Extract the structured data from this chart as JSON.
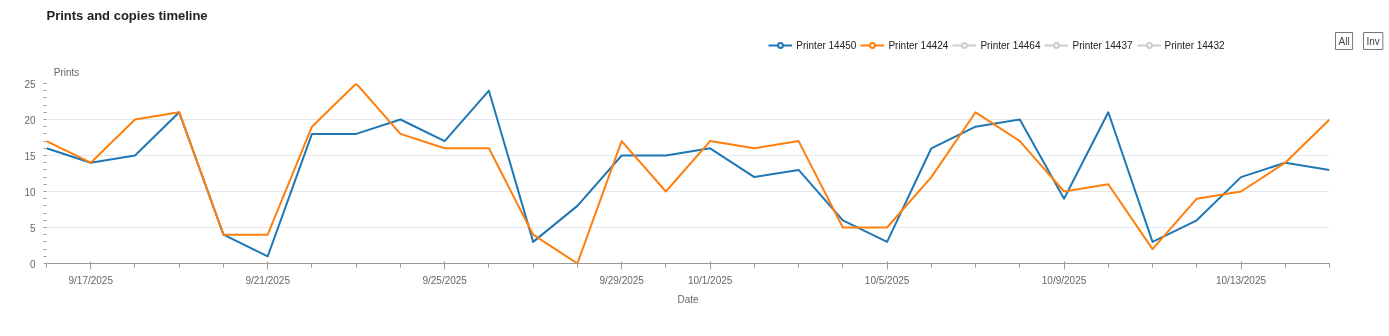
{
  "chart_data": {
    "type": "line",
    "title": "Prints and copies timeline",
    "xlabel": "Date",
    "ylabel": "Prints",
    "x": [
      "2025-09-16",
      "2025-09-17",
      "2025-09-18",
      "2025-09-19",
      "2025-09-20",
      "2025-09-21",
      "2025-09-22",
      "2025-09-23",
      "2025-09-24",
      "2025-09-25",
      "2025-09-26",
      "2025-09-27",
      "2025-09-28",
      "2025-09-29",
      "2025-09-30",
      "2025-10-01",
      "2025-10-02",
      "2025-10-03",
      "2025-10-04",
      "2025-10-05",
      "2025-10-06",
      "2025-10-07",
      "2025-10-08",
      "2025-10-09",
      "2025-10-10",
      "2025-10-11",
      "2025-10-12",
      "2025-10-13",
      "2025-10-14",
      "2025-10-15"
    ],
    "series": [
      {
        "name": "Printer 14450",
        "color": "#1f77b4",
        "values": [
          16,
          14,
          15,
          21,
          4,
          1,
          18,
          18,
          20,
          17,
          24,
          3,
          8,
          15,
          15,
          16,
          12,
          13,
          6,
          3,
          16,
          19,
          20,
          9,
          21,
          3,
          6,
          12,
          14,
          13
        ]
      },
      {
        "name": "Printer 14424",
        "color": "#ff7f0e",
        "values": [
          17,
          14,
          20,
          21,
          4,
          4,
          19,
          25,
          18,
          16,
          16,
          4,
          0,
          17,
          10,
          17,
          16,
          17,
          5,
          5,
          12,
          21,
          17,
          10,
          11,
          2,
          9,
          10,
          14,
          20
        ]
      },
      {
        "name": "Printer 14464",
        "color": "#cccccc",
        "values": [
          null,
          null,
          null,
          null,
          null,
          null,
          null,
          null,
          null,
          null,
          null,
          null,
          null,
          null,
          null,
          null,
          null,
          null,
          null,
          null,
          null,
          null,
          null,
          null,
          null,
          null,
          null,
          null,
          null,
          null
        ]
      },
      {
        "name": "Printer 14437",
        "color": "#cccccc",
        "values": [
          null,
          null,
          null,
          null,
          null,
          null,
          null,
          null,
          null,
          null,
          null,
          null,
          null,
          null,
          null,
          null,
          null,
          null,
          null,
          null,
          null,
          null,
          null,
          null,
          null,
          null,
          null,
          null,
          null,
          null
        ]
      },
      {
        "name": "Printer 14432",
        "color": "#cccccc",
        "values": [
          null,
          null,
          null,
          null,
          null,
          null,
          null,
          null,
          null,
          null,
          null,
          null,
          null,
          null,
          null,
          null,
          null,
          null,
          null,
          null,
          null,
          null,
          null,
          null,
          null,
          null,
          null,
          null,
          null,
          null
        ]
      }
    ],
    "xlim": [
      "2025-09-16",
      "2025-10-15"
    ],
    "xticks": [
      {
        "value": "2025-09-17",
        "label": "9/17/2025"
      },
      {
        "value": "2025-09-21",
        "label": "9/21/2025"
      },
      {
        "value": "2025-09-25",
        "label": "9/25/2025"
      },
      {
        "value": "2025-09-29",
        "label": "9/29/2025"
      },
      {
        "value": "2025-10-01",
        "label": "10/1/2025"
      },
      {
        "value": "2025-10-05",
        "label": "10/5/2025"
      },
      {
        "value": "2025-10-09",
        "label": "10/9/2025"
      },
      {
        "value": "2025-10-13",
        "label": "10/13/2025"
      }
    ],
    "ylim": [
      0,
      25
    ],
    "yticks": [
      0,
      5,
      10,
      15,
      20,
      25
    ],
    "grid": "y",
    "legend": "top right",
    "line_style": "solid",
    "annotations": [
      "All",
      "Inv"
    ]
  }
}
